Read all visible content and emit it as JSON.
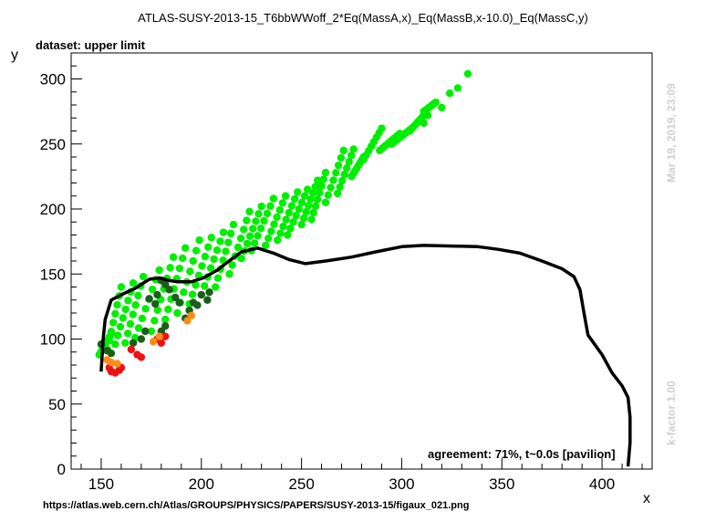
{
  "chart_data": {
    "type": "scatter",
    "title": "ATLAS-SUSY-2013-15_T6bbWWoff_2*Eq(MassA,x)_Eq(MassB,x-10.0)_Eq(MassC,y)",
    "subtitle": "dataset: upper limit",
    "xlabel": "x",
    "ylabel": "y",
    "xlim": [
      135,
      425
    ],
    "ylim": [
      0,
      320
    ],
    "xticks": [
      150,
      200,
      250,
      300,
      350,
      400
    ],
    "yticks": [
      0,
      50,
      100,
      150,
      200,
      250,
      300
    ],
    "grid": false,
    "colors": {
      "excluded_agree": "#00ee00",
      "allowed_agree": "#1a5e1a",
      "excluded_disagree": "#ff8c1a",
      "allowed_disagree": "#ee1111",
      "contour": "#000000"
    },
    "strips": [
      {
        "x0": 149,
        "x1": 155,
        "y_low": 88,
        "y_high": 104
      },
      {
        "x0": 153,
        "x1": 160,
        "y_low": 92,
        "y_high": 140
      },
      {
        "x0": 157,
        "x1": 166,
        "y_low": 96,
        "y_high": 143
      },
      {
        "x0": 162,
        "x1": 171,
        "y_low": 97,
        "y_high": 148
      },
      {
        "x0": 167,
        "x1": 179,
        "y_low": 101,
        "y_high": 153
      },
      {
        "x0": 175,
        "x1": 186,
        "y_low": 106,
        "y_high": 163
      },
      {
        "x0": 182,
        "x1": 192,
        "y_low": 115,
        "y_high": 170
      },
      {
        "x0": 188,
        "x1": 199,
        "y_low": 120,
        "y_high": 176
      },
      {
        "x0": 194,
        "x1": 205,
        "y_low": 127,
        "y_high": 178
      },
      {
        "x0": 200,
        "x1": 211,
        "y_low": 134,
        "y_high": 182
      },
      {
        "x0": 207,
        "x1": 216,
        "y_low": 140,
        "y_high": 188
      },
      {
        "x0": 214,
        "x1": 224,
        "y_low": 150,
        "y_high": 198
      },
      {
        "x0": 220,
        "x1": 230,
        "y_low": 162,
        "y_high": 202
      },
      {
        "x0": 225,
        "x1": 236,
        "y_low": 168,
        "y_high": 208
      },
      {
        "x0": 232,
        "x1": 242,
        "y_low": 172,
        "y_high": 210
      },
      {
        "x0": 238,
        "x1": 248,
        "y_low": 176,
        "y_high": 213
      },
      {
        "x0": 243,
        "x1": 253,
        "y_low": 180,
        "y_high": 215
      },
      {
        "x0": 250,
        "x1": 258,
        "y_low": 188,
        "y_high": 222
      },
      {
        "x0": 255,
        "x1": 262,
        "y_low": 192,
        "y_high": 228
      },
      {
        "x0": 262,
        "x1": 271,
        "y_low": 205,
        "y_high": 245
      },
      {
        "x0": 268,
        "x1": 276,
        "y_low": 212,
        "y_high": 246
      },
      {
        "x0": 275,
        "x1": 281,
        "y_low": 225,
        "y_high": 240
      },
      {
        "x0": 281,
        "x1": 290,
        "y_low": 238,
        "y_high": 262
      },
      {
        "x0": 289,
        "x1": 299,
        "y_low": 245,
        "y_high": 258
      },
      {
        "x0": 295,
        "x1": 305,
        "y_low": 250,
        "y_high": 262
      },
      {
        "x0": 304,
        "x1": 311,
        "y_low": 260,
        "y_high": 272
      },
      {
        "x0": 311,
        "x1": 317,
        "y_low": 275,
        "y_high": 282
      }
    ],
    "extra_points": [
      {
        "x": 311,
        "y": 266,
        "cls": "excluded_agree"
      },
      {
        "x": 313,
        "y": 272,
        "cls": "excluded_agree"
      },
      {
        "x": 320,
        "y": 278,
        "cls": "excluded_agree"
      },
      {
        "x": 324,
        "y": 289,
        "cls": "excluded_agree"
      },
      {
        "x": 328,
        "y": 293,
        "cls": "excluded_agree"
      },
      {
        "x": 333,
        "y": 304,
        "cls": "excluded_agree"
      },
      {
        "x": 150,
        "y": 96,
        "cls": "allowed_agree"
      },
      {
        "x": 153,
        "y": 91,
        "cls": "allowed_agree"
      },
      {
        "x": 155,
        "y": 89,
        "cls": "allowed_agree"
      },
      {
        "x": 166,
        "y": 97,
        "cls": "allowed_agree"
      },
      {
        "x": 170,
        "y": 100,
        "cls": "allowed_agree"
      },
      {
        "x": 172,
        "y": 106,
        "cls": "allowed_agree"
      },
      {
        "x": 174,
        "y": 131,
        "cls": "allowed_agree"
      },
      {
        "x": 177,
        "y": 127,
        "cls": "allowed_agree"
      },
      {
        "x": 178,
        "y": 134,
        "cls": "allowed_agree"
      },
      {
        "x": 180,
        "y": 145,
        "cls": "allowed_agree"
      },
      {
        "x": 182,
        "y": 142,
        "cls": "allowed_agree"
      },
      {
        "x": 184,
        "y": 138,
        "cls": "allowed_agree"
      },
      {
        "x": 187,
        "y": 132,
        "cls": "allowed_agree"
      },
      {
        "x": 189,
        "y": 128,
        "cls": "allowed_agree"
      },
      {
        "x": 194,
        "y": 122,
        "cls": "allowed_agree"
      },
      {
        "x": 196,
        "y": 128,
        "cls": "allowed_agree"
      },
      {
        "x": 198,
        "y": 126,
        "cls": "allowed_agree"
      },
      {
        "x": 200,
        "y": 134,
        "cls": "allowed_agree"
      },
      {
        "x": 203,
        "y": 130,
        "cls": "allowed_agree"
      },
      {
        "x": 204,
        "y": 136,
        "cls": "allowed_agree"
      },
      {
        "x": 180,
        "y": 106,
        "cls": "allowed_agree"
      },
      {
        "x": 182,
        "y": 110,
        "cls": "allowed_agree"
      },
      {
        "x": 192,
        "y": 116,
        "cls": "allowed_agree"
      },
      {
        "x": 154,
        "y": 78,
        "cls": "allowed_disagree"
      },
      {
        "x": 155,
        "y": 75,
        "cls": "allowed_disagree"
      },
      {
        "x": 157,
        "y": 74,
        "cls": "allowed_disagree"
      },
      {
        "x": 159,
        "y": 76,
        "cls": "allowed_disagree"
      },
      {
        "x": 160,
        "y": 78,
        "cls": "allowed_disagree"
      },
      {
        "x": 165,
        "y": 92,
        "cls": "allowed_disagree"
      },
      {
        "x": 168,
        "y": 88,
        "cls": "allowed_disagree"
      },
      {
        "x": 170,
        "y": 86,
        "cls": "allowed_disagree"
      },
      {
        "x": 178,
        "y": 100,
        "cls": "allowed_disagree"
      },
      {
        "x": 180,
        "y": 97,
        "cls": "allowed_disagree"
      },
      {
        "x": 182,
        "y": 102,
        "cls": "allowed_disagree"
      },
      {
        "x": 153,
        "y": 84,
        "cls": "excluded_disagree"
      },
      {
        "x": 155,
        "y": 82,
        "cls": "excluded_disagree"
      },
      {
        "x": 158,
        "y": 81,
        "cls": "excluded_disagree"
      },
      {
        "x": 176,
        "y": 98,
        "cls": "excluded_disagree"
      },
      {
        "x": 179,
        "y": 102,
        "cls": "excluded_disagree"
      },
      {
        "x": 193,
        "y": 114,
        "cls": "excluded_disagree"
      },
      {
        "x": 195,
        "y": 118,
        "cls": "excluded_disagree"
      }
    ],
    "contour": [
      [
        150,
        75
      ],
      [
        151,
        100
      ],
      [
        152,
        115
      ],
      [
        155,
        130
      ],
      [
        160,
        134
      ],
      [
        167,
        139
      ],
      [
        174,
        146
      ],
      [
        179,
        147
      ],
      [
        184,
        145
      ],
      [
        188,
        144
      ],
      [
        195,
        144
      ],
      [
        201,
        147
      ],
      [
        208,
        153
      ],
      [
        213,
        159
      ],
      [
        220,
        167
      ],
      [
        228,
        170
      ],
      [
        236,
        166
      ],
      [
        244,
        161
      ],
      [
        252,
        158
      ],
      [
        262,
        160
      ],
      [
        275,
        163
      ],
      [
        287,
        167
      ],
      [
        300,
        171
      ],
      [
        311,
        172
      ],
      [
        325,
        171.5
      ],
      [
        338,
        171
      ],
      [
        348,
        169
      ],
      [
        359,
        166
      ],
      [
        370,
        160
      ],
      [
        380,
        154
      ],
      [
        386,
        148
      ],
      [
        389,
        138
      ],
      [
        391,
        120
      ],
      [
        393,
        103
      ],
      [
        400,
        88
      ],
      [
        405,
        74
      ],
      [
        410,
        64
      ],
      [
        413,
        55
      ],
      [
        414,
        40
      ],
      [
        414,
        20
      ],
      [
        413,
        2
      ]
    ]
  },
  "header": {
    "title": "ATLAS-SUSY-2013-15_T6bbWWoff_2*Eq(MassA,x)_Eq(MassB,x-10.0)_Eq(MassC,y)",
    "subtitle": "dataset: upper limit"
  },
  "axes": {
    "xlabel": "x",
    "ylabel": "y"
  },
  "annotations": {
    "agreement": "agreement: 71%, t~0.0s [pavilion]",
    "timestamp": "Mar 19, 2019, 23:09",
    "kfactor": "k-factor 1.00",
    "source_url": "https://atlas.web.cern.ch/Atlas/GROUPS/PHYSICS/PAPERS/SUSY-2013-15/figaux_021.png"
  }
}
